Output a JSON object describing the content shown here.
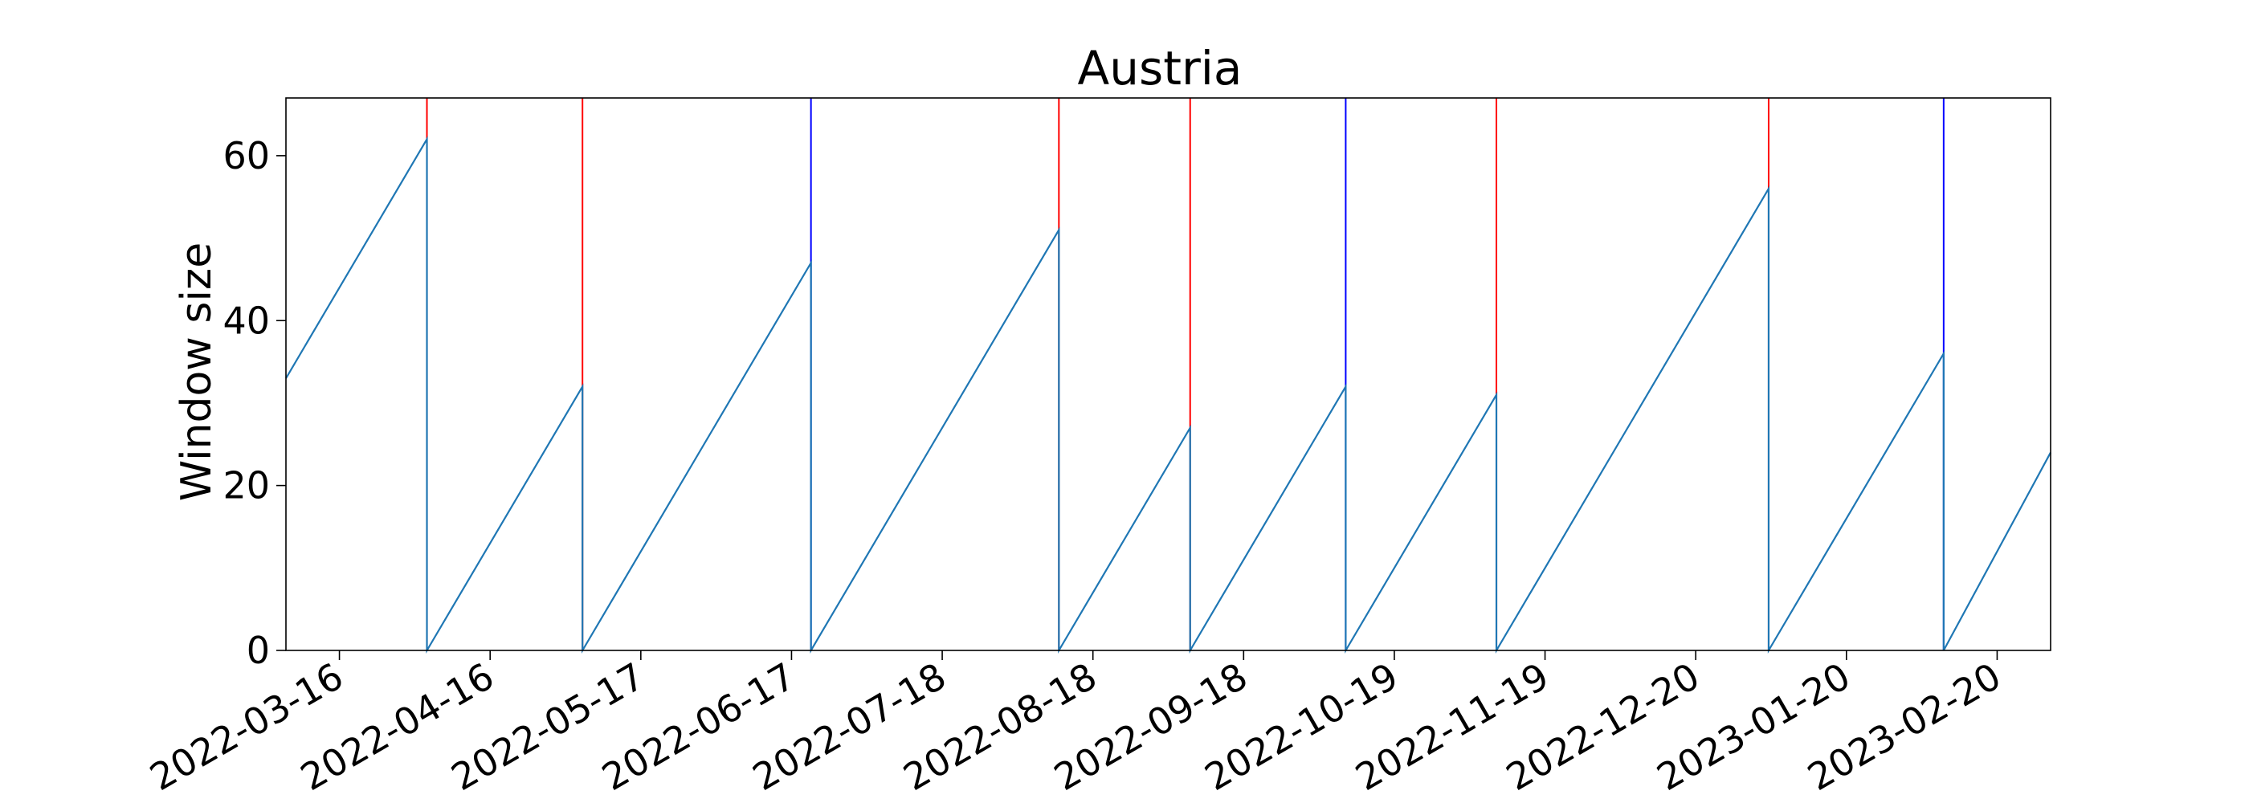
{
  "chart_data": {
    "type": "line",
    "title": "Austria",
    "xlabel": "",
    "ylabel": "Window size",
    "x_axis_type": "date",
    "xlim": [
      "2022-03-05",
      "2023-03-03"
    ],
    "ylim": [
      0,
      67
    ],
    "yticks": [
      0,
      20,
      40,
      60
    ],
    "xticks": [
      "2022-03-16",
      "2022-04-16",
      "2022-05-17",
      "2022-06-17",
      "2022-07-18",
      "2022-08-18",
      "2022-09-18",
      "2022-10-19",
      "2022-11-19",
      "2022-12-20",
      "2023-01-20",
      "2023-02-20"
    ],
    "grid": false,
    "series": [
      {
        "color": "#1f77b4",
        "points": [
          [
            "2022-03-05",
            33
          ],
          [
            "2022-04-03",
            62
          ],
          [
            "2022-04-03",
            0
          ],
          [
            "2022-05-05",
            32
          ],
          [
            "2022-05-05",
            0
          ],
          [
            "2022-06-21",
            47
          ],
          [
            "2022-06-21",
            0
          ],
          [
            "2022-08-11",
            51
          ],
          [
            "2022-08-11",
            0
          ],
          [
            "2022-09-07",
            27
          ],
          [
            "2022-09-07",
            0
          ],
          [
            "2022-10-09",
            32
          ],
          [
            "2022-10-09",
            0
          ],
          [
            "2022-11-09",
            31
          ],
          [
            "2022-11-09",
            0
          ],
          [
            "2023-01-04",
            56
          ],
          [
            "2023-01-04",
            0
          ],
          [
            "2023-02-09",
            36
          ],
          [
            "2023-02-09",
            0
          ],
          [
            "2023-03-03",
            24
          ]
        ]
      }
    ],
    "vlines": [
      {
        "x": "2022-04-03",
        "color": "#ff0000"
      },
      {
        "x": "2022-05-05",
        "color": "#ff0000"
      },
      {
        "x": "2022-06-21",
        "color": "#0000ff"
      },
      {
        "x": "2022-08-11",
        "color": "#ff0000"
      },
      {
        "x": "2022-09-07",
        "color": "#ff0000"
      },
      {
        "x": "2022-10-09",
        "color": "#0000ff"
      },
      {
        "x": "2022-11-09",
        "color": "#ff0000"
      },
      {
        "x": "2023-01-04",
        "color": "#ff0000"
      },
      {
        "x": "2023-02-09",
        "color": "#0000ff"
      }
    ]
  }
}
